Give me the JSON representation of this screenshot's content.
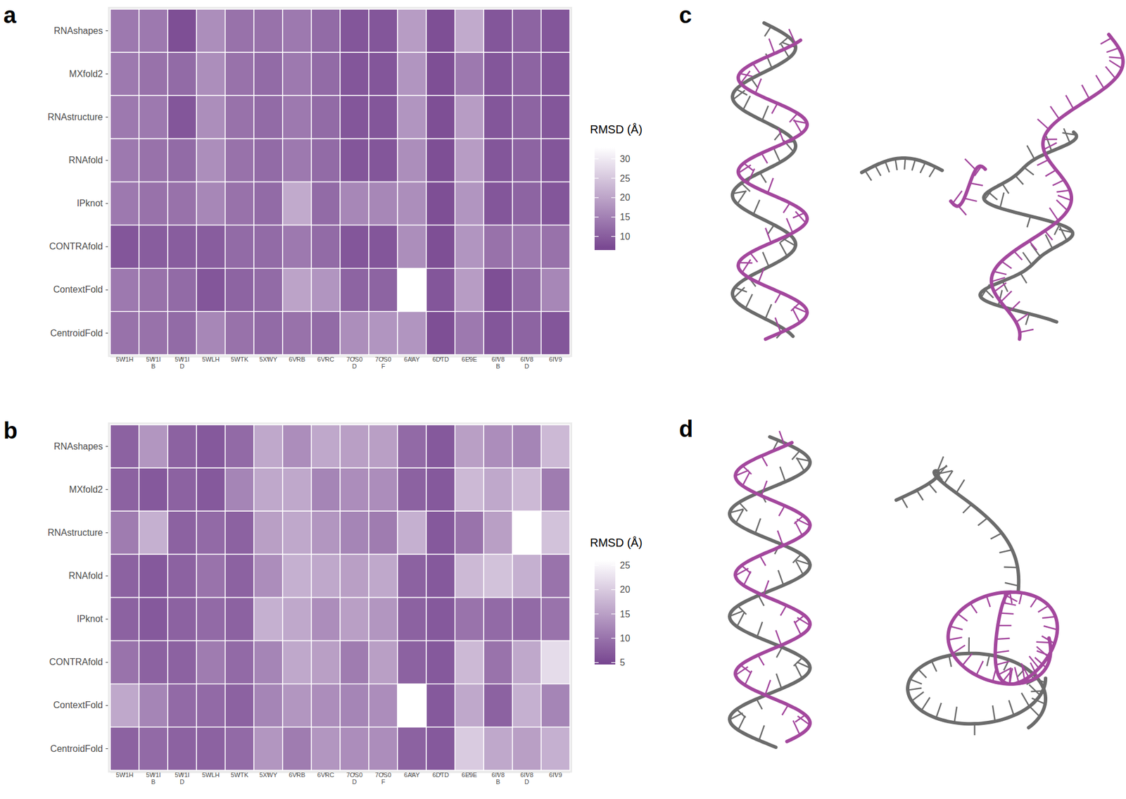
{
  "chart_data": [
    {
      "type": "heatmap",
      "title": "a",
      "categories": [
        "5W1H",
        "5W1I B",
        "5W1I D",
        "5WLH",
        "5WTK",
        "5XWY",
        "6VRB",
        "6VRC",
        "7OS0 D",
        "7OS0 F",
        "6AAY",
        "6DTD",
        "6E9E",
        "6IV8 B",
        "6IV8 D",
        "6IV9"
      ],
      "rows": [
        "RNAshapes",
        "MXfold2",
        "RNAstructure",
        "RNAfold",
        "IPknot",
        "CONTRAfold",
        "ContextFold",
        "CentroidFold"
      ],
      "cells": [
        [
          14,
          14,
          8,
          17,
          13,
          13,
          14,
          12,
          9,
          9,
          19,
          8,
          21,
          9,
          11,
          9
        ],
        [
          14,
          13,
          12,
          17,
          13,
          12,
          14,
          12,
          9,
          9,
          18,
          8,
          14,
          9,
          11,
          9
        ],
        [
          14,
          14,
          9,
          17,
          13,
          12,
          14,
          12,
          9,
          9,
          18,
          8,
          19,
          9,
          11,
          9
        ],
        [
          14,
          13,
          12,
          17,
          13,
          12,
          14,
          12,
          9,
          9,
          17,
          8,
          19,
          9,
          11,
          9
        ],
        [
          14,
          13,
          13,
          16,
          13,
          12,
          21,
          12,
          16,
          16,
          17,
          8,
          18,
          9,
          11,
          9
        ],
        [
          9,
          10,
          10,
          10,
          12,
          12,
          14,
          12,
          9,
          9,
          17,
          8,
          18,
          13,
          14,
          13
        ],
        [
          14,
          13,
          12,
          9,
          11,
          12,
          20,
          18,
          11,
          11,
          33,
          9,
          19,
          8,
          12,
          16
        ],
        [
          13,
          13,
          12,
          16,
          13,
          12,
          13,
          12,
          17,
          18,
          18,
          8,
          14,
          9,
          11,
          9
        ]
      ],
      "colorbar": {
        "title": "RMSD (Å)",
        "range": [
          6.5,
          33
        ],
        "ticks": [
          10,
          15,
          20,
          25,
          30
        ]
      }
    },
    {
      "type": "heatmap",
      "title": "b",
      "categories": [
        "5W1H",
        "5W1I B",
        "5W1I D",
        "5WLH",
        "5WTK",
        "5XWY",
        "6VRB",
        "6VRC",
        "7OS0 D",
        "7OS0 F",
        "6AAY",
        "6DTD",
        "6E9E",
        "6IV8 B",
        "6IV8 D",
        "6IV9"
      ],
      "rows": [
        "RNAshapes",
        "MXfold2",
        "RNAstructure",
        "RNAfold",
        "IPknot",
        "CONTRAfold",
        "ContextFold",
        "CentroidFold"
      ],
      "cells": [
        [
          8,
          14,
          8,
          7,
          9,
          16,
          13,
          16,
          15,
          15,
          9,
          7,
          15,
          13,
          12,
          18
        ],
        [
          8,
          7,
          8,
          7,
          12,
          16,
          16,
          12,
          13,
          13,
          8,
          7,
          18,
          16,
          18,
          11
        ],
        [
          11,
          17,
          8,
          9,
          8,
          15,
          16,
          14,
          12,
          11,
          17,
          7,
          10,
          15,
          26,
          19
        ],
        [
          8,
          7,
          8,
          10,
          8,
          13,
          17,
          16,
          15,
          16,
          8,
          7,
          18,
          19,
          17,
          10
        ],
        [
          8,
          7,
          8,
          9,
          8,
          17,
          16,
          13,
          15,
          14,
          8,
          7,
          10,
          9,
          9,
          10
        ],
        [
          10,
          8,
          8,
          11,
          9,
          12,
          16,
          15,
          11,
          15,
          8,
          7,
          18,
          10,
          16,
          22
        ],
        [
          16,
          12,
          9,
          9,
          8,
          12,
          14,
          13,
          12,
          13,
          26,
          7,
          16,
          8,
          17,
          12
        ],
        [
          8,
          9,
          8,
          8,
          9,
          14,
          11,
          14,
          13,
          13,
          8,
          7,
          20,
          16,
          15,
          17
        ]
      ],
      "colorbar": {
        "title": "RMSD (Å)",
        "range": [
          4.6,
          26
        ],
        "ticks": [
          5,
          10,
          15,
          20,
          25
        ]
      }
    }
  ],
  "panels": [
    {
      "label": "c"
    },
    {
      "label": "d"
    }
  ]
}
